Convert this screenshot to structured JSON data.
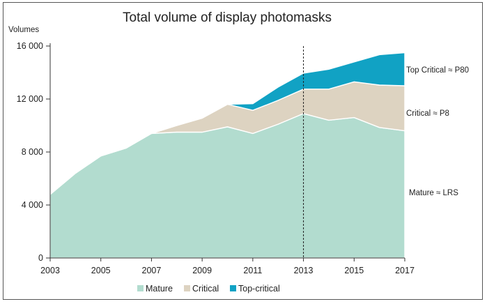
{
  "chart_data": {
    "type": "area",
    "stacked": true,
    "title": "Total volume of display photomasks",
    "ylabel": "Volumes",
    "xlabel": "",
    "x": [
      2003,
      2004,
      2005,
      2006,
      2007,
      2008,
      2009,
      2010,
      2011,
      2012,
      2013,
      2014,
      2015,
      2016,
      2017
    ],
    "xlim": [
      2003,
      2017
    ],
    "ylim": [
      0,
      16000
    ],
    "x_ticks": [
      "2003",
      "2005",
      "2007",
      "2009",
      "2011",
      "2013",
      "2015",
      "2017"
    ],
    "y_ticks": [
      "0",
      "4 000",
      "8 000",
      "12 000",
      "16 000"
    ],
    "series": [
      {
        "name": "Mature",
        "color": "#b2dccf",
        "values": [
          4800,
          6400,
          7700,
          8300,
          9400,
          9500,
          9500,
          9900,
          9400,
          10100,
          10900,
          10400,
          10600,
          9850,
          9600
        ]
      },
      {
        "name": "Critical",
        "color": "#ddd3c1",
        "values": [
          0,
          0,
          0,
          0,
          0,
          500,
          1050,
          1700,
          1750,
          1800,
          1850,
          2350,
          2700,
          3200,
          3400
        ]
      },
      {
        "name": "Top-critical",
        "color": "#11a2c4",
        "values": [
          0,
          0,
          0,
          0,
          0,
          0,
          0,
          0,
          500,
          1000,
          1200,
          1500,
          1500,
          2300,
          2500
        ]
      }
    ],
    "marker_line": {
      "x": 2013,
      "style": "dashed"
    },
    "annotations": [
      "Top Critical ≈ P80",
      "Critical ≈ P8",
      "Mature ≈ LRS"
    ],
    "grid": false,
    "legend_position": "bottom"
  }
}
